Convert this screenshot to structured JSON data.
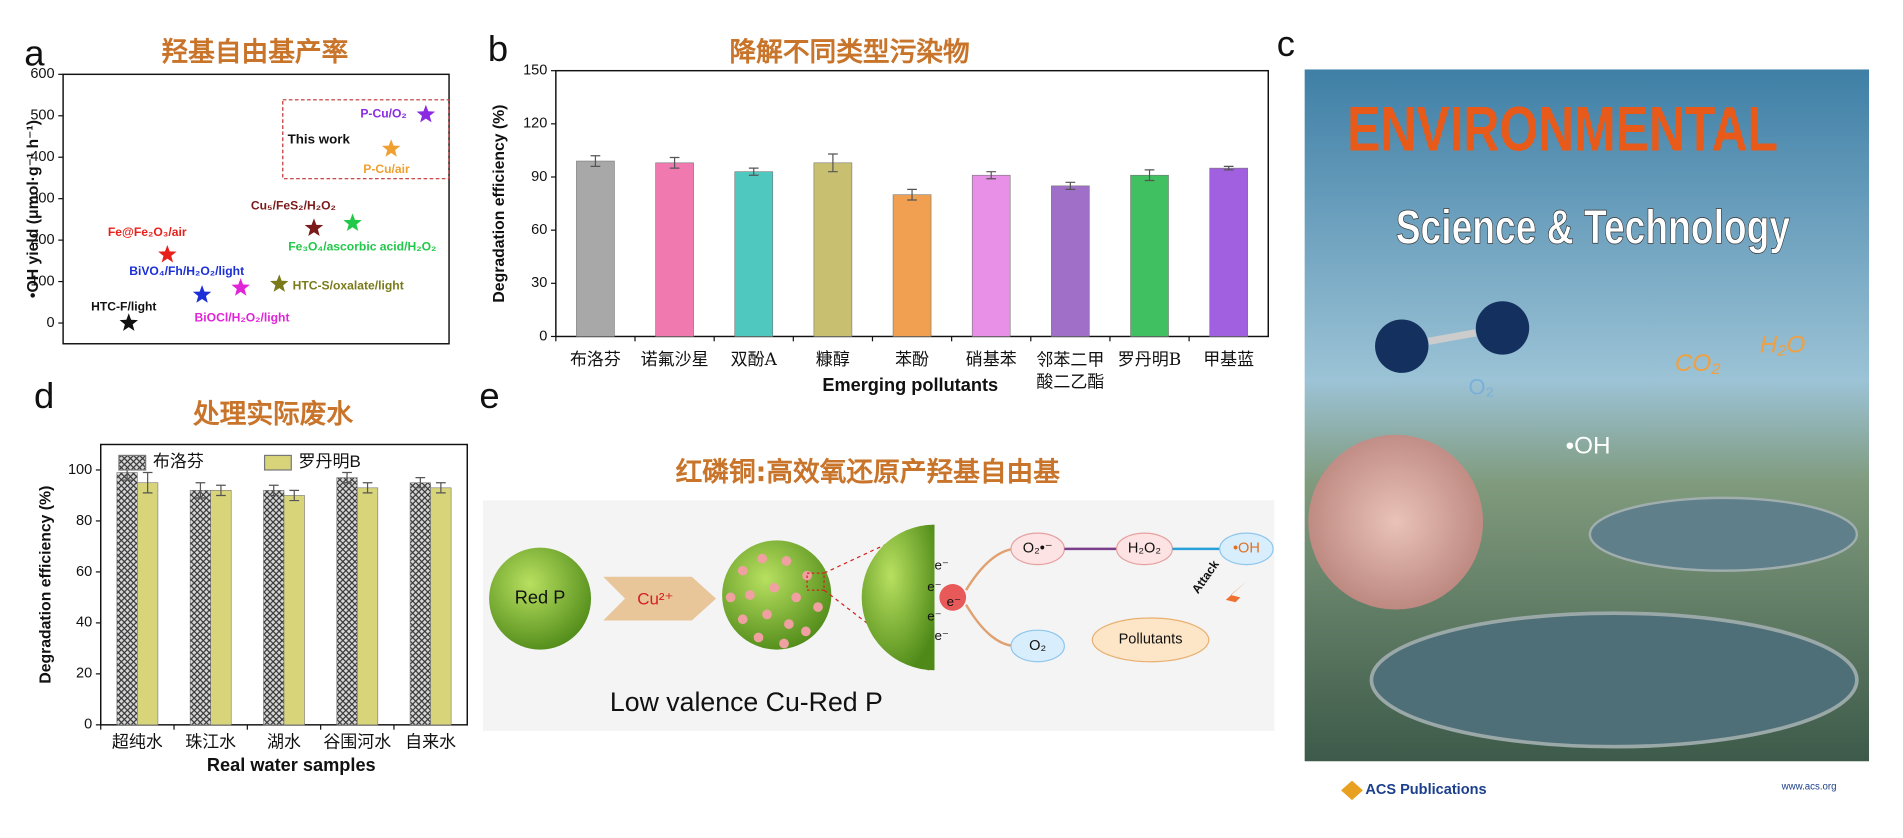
{
  "panel_labels": [
    "a",
    "b",
    "c",
    "d",
    "e"
  ],
  "chart_data": [
    {
      "type": "scatter",
      "title": "羟基自由基产率",
      "y_label": "•OH yield (μmol·g⁻¹ h⁻¹)",
      "xlim": [
        0,
        10
      ],
      "ylim": [
        -50,
        600
      ],
      "yticks": [
        0,
        100,
        200,
        300,
        400,
        500,
        600
      ],
      "annotation": "This work",
      "series": [
        {
          "name": "HTC-F/light",
          "color": "#111111",
          "x": [
            1.7
          ],
          "values": [
            0
          ]
        },
        {
          "name": "Fe@Fe₂O₃/air",
          "color": "#e8201c",
          "x": [
            2.7
          ],
          "values": [
            165
          ]
        },
        {
          "name": "BiVO₄/Fh/H₂O₂/light",
          "color": "#1a2fd6",
          "x": [
            3.6
          ],
          "values": [
            68
          ]
        },
        {
          "name": "BiOCl/H₂O₂/light",
          "color": "#e024d8",
          "x": [
            4.6
          ],
          "values": [
            85
          ]
        },
        {
          "name": "HTC-S/oxalate/light",
          "color": "#7a7a1a",
          "x": [
            5.6
          ],
          "values": [
            94
          ]
        },
        {
          "name": "Cu₅/FeS₂/H₂O₂",
          "color": "#7a1a1a",
          "x": [
            6.5
          ],
          "values": [
            229
          ]
        },
        {
          "name": "Fe₃O₄/ascorbic acid/H₂O₂",
          "color": "#22c84a",
          "x": [
            7.5
          ],
          "values": [
            241
          ]
        },
        {
          "name": "P-Cu/air",
          "color": "#f0a030",
          "x": [
            8.5
          ],
          "values": [
            420
          ]
        },
        {
          "name": "P-Cu/O₂",
          "color": "#8a2be2",
          "x": [
            9.4
          ],
          "values": [
            503
          ]
        }
      ]
    },
    {
      "type": "bar",
      "title": "降解不同类型污染物",
      "y_label": "Degradation efficiency (%)",
      "x_label": "Emerging pollutants",
      "categories": [
        "布洛芬",
        "诺氟沙星",
        "双酚A",
        "糠醇",
        "苯酚",
        "硝基苯",
        "邻苯二甲酸二乙酯",
        "罗丹明B",
        "甲基蓝"
      ],
      "values": [
        99,
        98,
        93,
        98,
        80,
        91,
        85,
        91,
        95
      ],
      "errors": [
        3,
        3,
        2,
        5,
        3,
        2,
        2,
        3,
        1
      ],
      "colors": [
        "#a8a8a8",
        "#f07ab0",
        "#4fc8c0",
        "#c8c070",
        "#f0a050",
        "#e890e8",
        "#a070c8",
        "#40c060",
        "#a060e0"
      ],
      "ylim": [
        0,
        150
      ],
      "yticks": [
        0,
        30,
        60,
        90,
        120,
        150
      ]
    },
    {
      "type": "bar",
      "title": "处理实际废水",
      "y_label": "Degradation efficiency (%)",
      "x_label": "Real water samples",
      "categories": [
        "超纯水",
        "珠江水",
        "湖水",
        "谷围河水",
        "自来水"
      ],
      "series": [
        {
          "name": "布洛芬",
          "color": "#9a9a9a",
          "values": [
            99,
            92,
            92,
            97,
            95
          ],
          "errors": [
            3,
            3,
            2,
            2,
            2
          ]
        },
        {
          "name": "罗丹明B",
          "color": "#d8d47a",
          "values": [
            95,
            92,
            90,
            93,
            93
          ],
          "errors": [
            4,
            2,
            2,
            2,
            2
          ]
        }
      ],
      "ylim": [
        0,
        110
      ],
      "yticks": [
        0,
        20,
        40,
        60,
        80,
        100
      ]
    }
  ],
  "diagram": {
    "title": "红磷铜:高效氧还原产羟基自由基",
    "red_p": "Red P",
    "cu": "Cu²⁺",
    "caption": "Low valence Cu-Red P",
    "electron": "e⁻",
    "superoxide": "O₂•⁻",
    "h2o2": "H₂O₂",
    "oh": "•OH",
    "o2": "O₂",
    "pollutants": "Pollutants",
    "attack": "Attack"
  },
  "cover": {
    "journal_line1": "ENVIRONMENTAL",
    "journal_line2": "Science & Technology",
    "oh": "•OH",
    "co2": "CO₂",
    "h2o": "H₂O",
    "o2": "O₂",
    "publisher": "ACS Publications",
    "url": "www.acs.org"
  }
}
